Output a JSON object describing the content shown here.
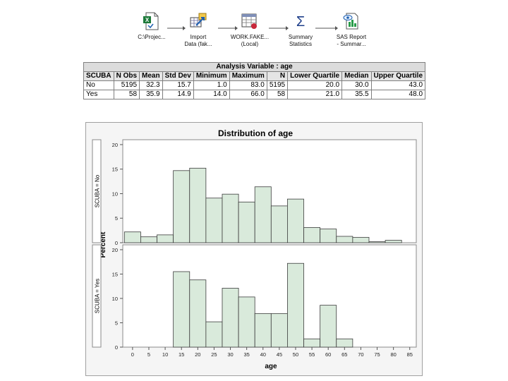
{
  "process_flow": {
    "nodes": [
      {
        "line1": "C:\\Projec...",
        "line2": "",
        "icon": "excel-file-icon"
      },
      {
        "line1": "Import",
        "line2": "Data (fak...",
        "icon": "import-data-icon"
      },
      {
        "line1": "WORK.FAKE...",
        "line2": "(Local)",
        "icon": "data-table-icon"
      },
      {
        "line1": "Summary",
        "line2": "Statistics",
        "icon": "sigma-icon"
      },
      {
        "line1": "SAS Report",
        "line2": "- Summar...",
        "icon": "sas-report-icon"
      }
    ]
  },
  "summary_table": {
    "caption": "Analysis Variable : age",
    "headers": [
      "SCUBA",
      "N Obs",
      "Mean",
      "Std Dev",
      "Minimum",
      "Maximum",
      "N",
      "Lower Quartile",
      "Median",
      "Upper Quartile"
    ],
    "rows": [
      [
        "No",
        "5195",
        "32.3",
        "15.7",
        "1.0",
        "83.0",
        "5195",
        "20.0",
        "30.0",
        "43.0"
      ],
      [
        "Yes",
        "58",
        "35.9",
        "14.9",
        "14.0",
        "66.0",
        "58",
        "21.0",
        "35.5",
        "48.0"
      ]
    ]
  },
  "chart_data": {
    "type": "bar",
    "title": "Distribution of age",
    "xlabel": "age",
    "ylabel": "Percent",
    "xlim": [
      -3,
      87
    ],
    "ylim": [
      0,
      21
    ],
    "x_ticks": [
      0,
      5,
      10,
      15,
      20,
      25,
      30,
      35,
      40,
      45,
      50,
      55,
      60,
      65,
      70,
      75,
      80,
      85
    ],
    "y_ticks": [
      0,
      5,
      10,
      15,
      20
    ],
    "bin_edges": [
      -2.5,
      2.5,
      7.5,
      12.5,
      17.5,
      22.5,
      27.5,
      32.5,
      37.5,
      42.5,
      47.5,
      52.5,
      57.5,
      62.5,
      67.5,
      72.5,
      77.5,
      82.5
    ],
    "panels": [
      {
        "label": "SCUBA = No",
        "values": [
          2.2,
          1.2,
          1.6,
          14.7,
          15.2,
          9.1,
          9.9,
          8.3,
          11.4,
          7.5,
          8.9,
          3.1,
          2.8,
          1.3,
          1.1,
          0.2,
          0.5
        ]
      },
      {
        "label": "SCUBA = Yes",
        "values": [
          0,
          0,
          0,
          15.5,
          13.8,
          5.2,
          12.1,
          10.3,
          6.9,
          6.9,
          17.2,
          1.7,
          8.6,
          1.7,
          0,
          0,
          0
        ]
      }
    ],
    "colors": {
      "bar_fill": "#d9eadb",
      "bar_stroke": "#3c3c3c",
      "plot_bg": "#ffffff",
      "frame_bg": "#f5f5f5"
    }
  }
}
